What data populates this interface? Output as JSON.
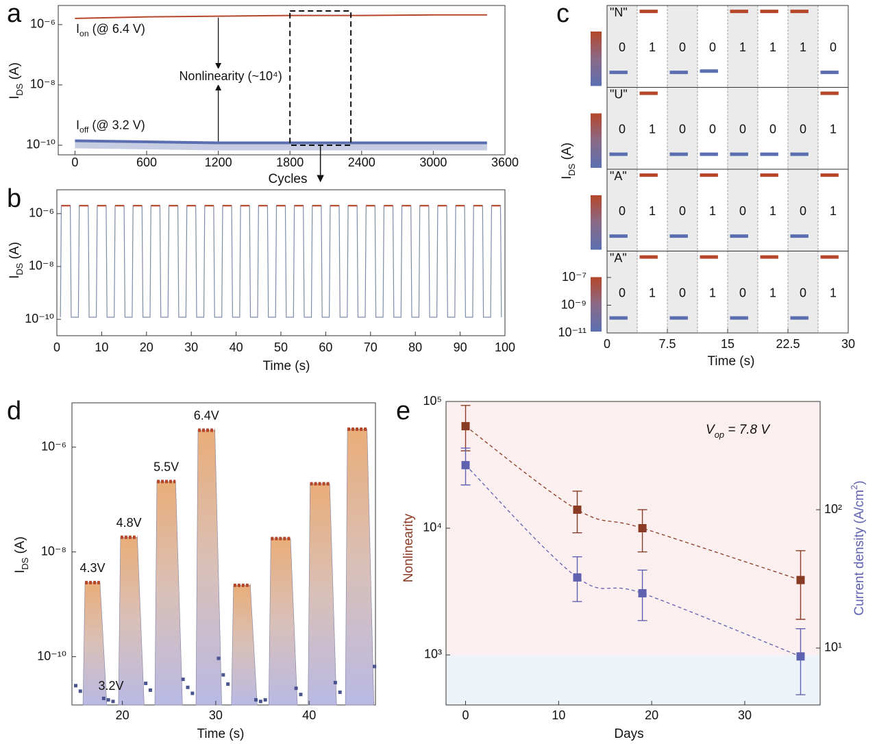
{
  "chart_data": [
    {
      "type": "cycles",
      "panel": "a",
      "xlabel": "Cycles",
      "ylabel": [
        "I",
        "DS",
        " (A)"
      ],
      "log_y": true,
      "xlim": [
        -140,
        3600
      ],
      "ylim": [
        4.8e-11,
        4.3e-06
      ],
      "xticks": [
        0,
        600,
        1200,
        1800,
        2400,
        3000,
        3600
      ],
      "yticks": [
        {
          "value": 1e-06,
          "label": "10⁻⁶"
        },
        {
          "value": 1e-08,
          "label": "10⁻⁸"
        },
        {
          "value": 1e-10,
          "label": "10⁻¹⁰"
        }
      ],
      "x": [
        0,
        600,
        1200,
        1800,
        2400,
        3000,
        3450
      ],
      "series": [
        {
          "label": [
            "I",
            "on",
            " (@ 6.4 V)"
          ],
          "color": "#b5462a",
          "values": [
            1.6e-06,
            1.8e-06,
            1.9e-06,
            2e-06,
            2e-06,
            2.1e-06,
            2.1e-06
          ]
        },
        {
          "label": [
            "I",
            "off",
            " (@ 3.2 V)"
          ],
          "color": "#5b6fb0",
          "values": [
            1.4e-10,
            1.3e-10,
            1.2e-10,
            1.2e-10,
            1.2e-10,
            1.2e-10,
            1.2e-10
          ]
        }
      ],
      "annotation": "Nonlinearity (~10⁴)",
      "highlight_range": [
        1800,
        2310
      ]
    },
    {
      "type": "pulse-train",
      "panel": "b",
      "xlabel": "Time (s)",
      "ylabel": [
        "I",
        "DS",
        " (A)"
      ],
      "log_y": true,
      "xlim": [
        0,
        100
      ],
      "ylim": [
        2.4e-11,
        8e-06
      ],
      "xticks": [
        0,
        10,
        20,
        30,
        40,
        50,
        60,
        70,
        80,
        90,
        100
      ],
      "yticks": [
        {
          "value": 1e-06,
          "label": "10⁻⁶"
        },
        {
          "value": 1e-08,
          "label": "10⁻⁸"
        },
        {
          "value": 1e-10,
          "label": "10⁻¹⁰"
        }
      ],
      "x": [
        0.8,
        1,
        3,
        3.2,
        4.8,
        5,
        7,
        7.2,
        8.8,
        9,
        11,
        11.2,
        12.8,
        13,
        15,
        15.2,
        16.8,
        17,
        19,
        19.2,
        20.8,
        21,
        23,
        23.2,
        24.8,
        25,
        27,
        27.2,
        28.8,
        29,
        31,
        31.2,
        32.8,
        33,
        35,
        35.2,
        36.8,
        37,
        39,
        39.2,
        40.8,
        41,
        43,
        43.2,
        44.8,
        45,
        47,
        47.2,
        48.8,
        49,
        51,
        51.2,
        52.8,
        53,
        55,
        55.2,
        56.8,
        57,
        59,
        59.2,
        60.8,
        61,
        63,
        63.2,
        64.8,
        65,
        67,
        67.2,
        68.8,
        69,
        71,
        71.2,
        72.8,
        73,
        75,
        75.2,
        76.8,
        77,
        79,
        79.2,
        80.8,
        81,
        83,
        83.2,
        84.8,
        85,
        87,
        87.2,
        88.8,
        89,
        91,
        91.2,
        92.8,
        93,
        95,
        95.2,
        96.8,
        97,
        99,
        99.2
      ],
      "values": [
        1.2e-10,
        2e-06,
        2e-06,
        1.2e-10,
        1.2e-10,
        2e-06,
        2e-06,
        1.2e-10,
        1.2e-10,
        2e-06,
        2e-06,
        1.2e-10,
        1.2e-10,
        2e-06,
        2e-06,
        1.2e-10,
        1.2e-10,
        2e-06,
        2e-06,
        1.2e-10,
        1.2e-10,
        2e-06,
        2e-06,
        1.2e-10,
        1.2e-10,
        2e-06,
        2e-06,
        1.2e-10,
        1.2e-10,
        2e-06,
        2e-06,
        1.2e-10,
        1.2e-10,
        2e-06,
        2e-06,
        1.2e-10,
        1.2e-10,
        2e-06,
        2e-06,
        1.2e-10,
        1.2e-10,
        2e-06,
        2e-06,
        1.2e-10,
        1.2e-10,
        2e-06,
        2e-06,
        1.2e-10,
        1.2e-10,
        2e-06,
        2e-06,
        1.2e-10,
        1.2e-10,
        2e-06,
        2e-06,
        1.2e-10,
        1.2e-10,
        2e-06,
        2e-06,
        1.2e-10,
        1.2e-10,
        2e-06,
        2e-06,
        1.2e-10,
        1.2e-10,
        2e-06,
        2e-06,
        1.2e-10,
        1.2e-10,
        2e-06,
        2e-06,
        1.2e-10,
        1.2e-10,
        2e-06,
        2e-06,
        1.2e-10,
        1.2e-10,
        2e-06,
        2e-06,
        1.2e-10,
        1.2e-10,
        2e-06,
        2e-06,
        1.2e-10,
        1.2e-10,
        2e-06,
        2e-06,
        1.2e-10,
        1.2e-10,
        2e-06,
        2e-06,
        1.2e-10,
        1.2e-10,
        2e-06,
        2e-06,
        1.2e-10,
        1.2e-10,
        2e-06,
        2e-06,
        1.2e-10
      ],
      "line_color": "#7d8aa8",
      "high_color": "#b5462a"
    },
    {
      "type": "bit-rows",
      "panel": "c",
      "xlabel": "Time (s)",
      "ylabel": [
        "I",
        "DS",
        " (A)"
      ],
      "log_y": true,
      "xlim": [
        0,
        30
      ],
      "ylim": [
        1e-11,
        8e-06
      ],
      "xticks": [
        0,
        7.5,
        15,
        22.5,
        30
      ],
      "yticks": [
        {
          "value": 1e-07,
          "label": "10⁻⁷"
        },
        {
          "value": 1e-09,
          "label": "10⁻⁹"
        },
        {
          "value": 1e-11,
          "label": "10⁻¹¹"
        }
      ],
      "high_color": "#b5462a",
      "low_color": "#5b6fb0",
      "rows": [
        {
          "letter": "\"N\"",
          "bits": [
            0,
            1,
            0,
            0,
            1,
            1,
            1,
            0
          ],
          "values": [
            1.2e-10,
            3e-06,
            1.2e-10,
            1.5e-10,
            3e-06,
            3e-06,
            3e-06,
            1.2e-10
          ]
        },
        {
          "letter": "\"U\"",
          "bits": [
            0,
            1,
            0,
            0,
            0,
            0,
            0,
            1
          ],
          "values": [
            1.2e-10,
            3e-06,
            1.2e-10,
            1.2e-10,
            1.2e-10,
            1.2e-10,
            1.2e-10,
            3e-06
          ]
        },
        {
          "letter": "\"A\"",
          "bits": [
            0,
            1,
            0,
            1,
            0,
            1,
            0,
            1
          ],
          "values": [
            1.2e-10,
            3e-06,
            1.2e-10,
            3e-06,
            1.2e-10,
            3e-06,
            1.2e-10,
            3e-06
          ]
        },
        {
          "letter": "\"A\"",
          "bits": [
            0,
            1,
            0,
            1,
            0,
            1,
            0,
            1
          ],
          "values": [
            1.2e-10,
            3e-06,
            1.2e-10,
            3e-06,
            1.2e-10,
            3e-06,
            1.2e-10,
            3e-06
          ]
        }
      ]
    },
    {
      "type": "pulses",
      "panel": "d",
      "xlabel": "Time (s)",
      "ylabel": [
        "I",
        "DS",
        " (A)"
      ],
      "log_y": true,
      "xlim": [
        14.6,
        47.1
      ],
      "ylim": [
        1.2e-11,
        7e-06
      ],
      "xticks": [
        20,
        30,
        40
      ],
      "yticks": [
        {
          "value": 1e-06,
          "label": "10⁻⁶"
        },
        {
          "value": 1e-08,
          "label": "10⁻⁸"
        },
        {
          "value": 1e-10,
          "label": "10⁻¹⁰"
        }
      ],
      "pulse_color": "#b5462a",
      "off_color": "#4a5590",
      "pulses": [
        {
          "x0": 16.0,
          "x1": 17.6,
          "value": 2.6e-09,
          "label": "4.3V"
        },
        {
          "x0": 19.8,
          "x1": 21.6,
          "value": 1.9e-08,
          "label": "4.8V"
        },
        {
          "x0": 23.7,
          "x1": 25.7,
          "value": 2.2e-07,
          "label": "5.5V"
        },
        {
          "x0": 28.1,
          "x1": 29.9,
          "value": 2.1e-06,
          "label": "6.4V"
        },
        {
          "x0": 31.9,
          "x1": 33.7,
          "value": 2.3e-09
        },
        {
          "x0": 35.9,
          "x1": 38.0,
          "value": 1.8e-08
        },
        {
          "x0": 40.1,
          "x1": 42.2,
          "value": 2e-07
        },
        {
          "x0": 44.1,
          "x1": 46.2,
          "value": 2.2e-06
        }
      ],
      "off_x": [
        15.0,
        15.5,
        18.0,
        18.5,
        19.0,
        22.5,
        23.0,
        26.5,
        27.0,
        27.5,
        30.3,
        30.8,
        31.3,
        34.3,
        34.8,
        35.3,
        38.6,
        39.1,
        42.8,
        43.3,
        47.0
      ],
      "off_values": [
        2.8e-11,
        2.2e-11,
        1.6e-11,
        1.5e-11,
        1.4e-11,
        3.1e-11,
        2.3e-11,
        3.7e-11,
        2.6e-11,
        2e-11,
        9.3e-11,
        4.5e-11,
        3e-11,
        1.5e-11,
        1.4e-11,
        1.5e-11,
        2.5e-11,
        1.9e-11,
        3.2e-11,
        2.1e-11,
        6.5e-11
      ],
      "off_label": "3.2V"
    },
    {
      "type": "scatter",
      "panel": "e",
      "xlabel": "Days",
      "ylabel": "Nonlinearity",
      "y2label": [
        "Current density (A/cm",
        "2",
        ")"
      ],
      "log_y": true,
      "annotation": [
        "V",
        "op",
        " = 7.8 V"
      ],
      "xlim": [
        -2.1,
        38.1
      ],
      "ylim": [
        403,
        100000
      ],
      "y2lim": [
        3.88,
        606
      ],
      "xticks": [
        0,
        10,
        20,
        30
      ],
      "yticks": [
        {
          "value": 1000,
          "label": "10³"
        },
        {
          "value": 10000,
          "label": "10⁴"
        },
        {
          "value": 100000,
          "label": "10⁵"
        }
      ],
      "y2ticks": [
        {
          "value": 10,
          "label": "10¹"
        },
        {
          "value": 100,
          "label": "10²"
        }
      ],
      "band_colors": [
        "#fcefef",
        "#eef3fa"
      ],
      "x": [
        0,
        12,
        19,
        36
      ],
      "series": [
        {
          "color": "#8a3b25",
          "values": [
            63800,
            14000,
            10000,
            3900
          ],
          "lower": [
            40800,
            9200,
            6500,
            1910
          ],
          "upper": [
            93000,
            19600,
            14000,
            6650
          ]
        },
        {
          "axis": "y2",
          "color": "#5f62b0",
          "values": [
            210,
            32.4,
            24.9,
            8.7
          ],
          "lower": [
            151,
            21.7,
            15.8,
            4.6
          ],
          "upper": [
            279,
            45.7,
            36.6,
            13.8
          ]
        }
      ]
    }
  ]
}
